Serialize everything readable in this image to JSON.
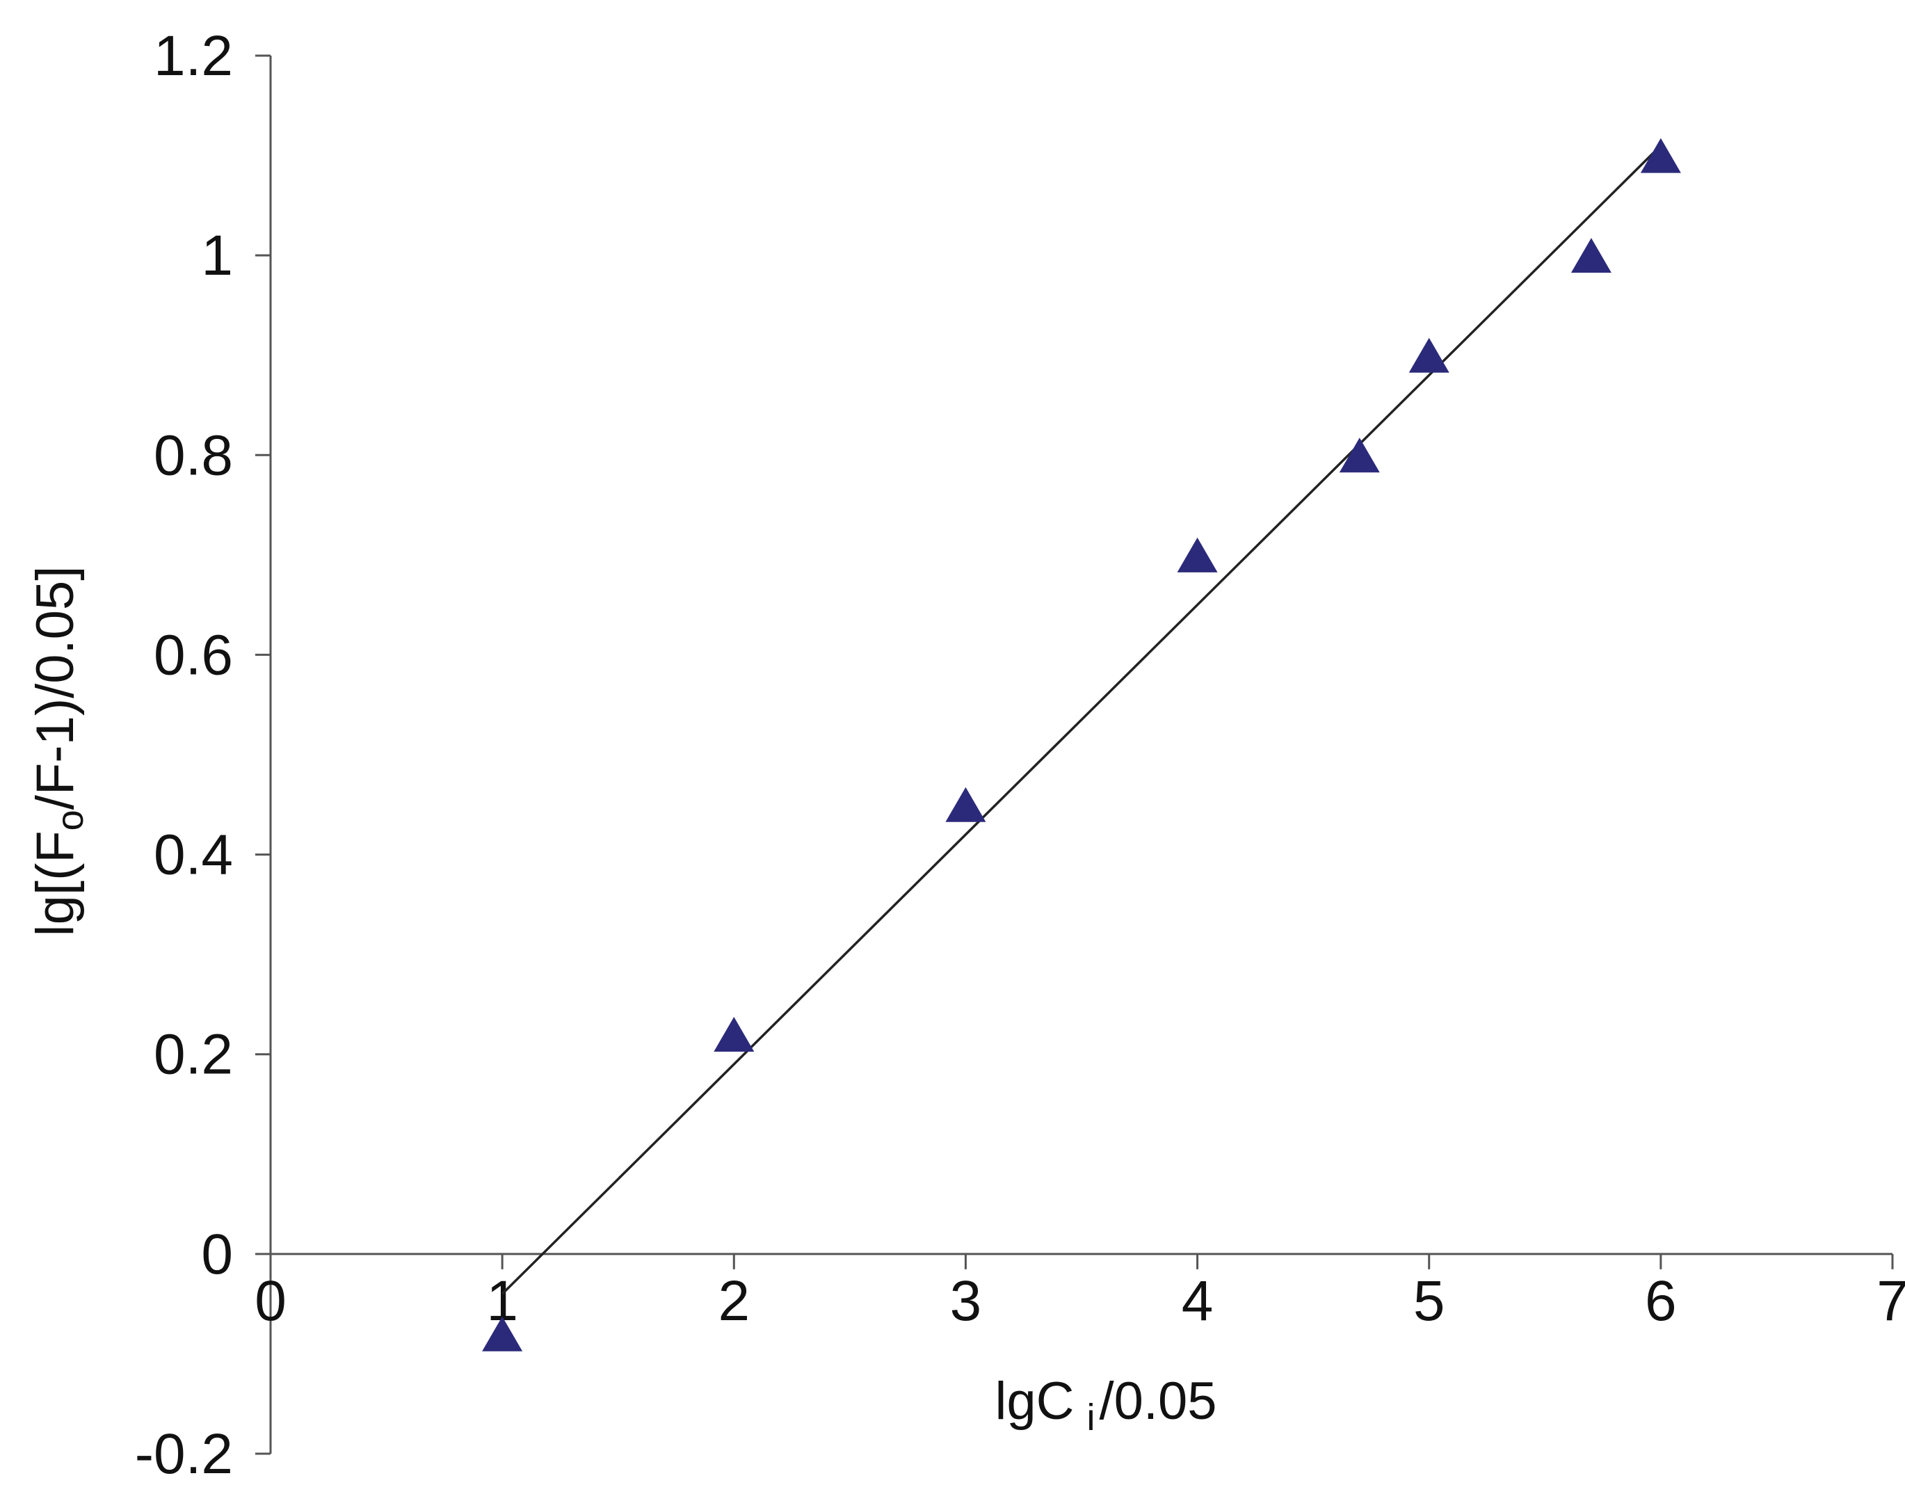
{
  "chart_data": {
    "type": "scatter",
    "title": "",
    "xlabel": "lgC i /0.05",
    "xlabel_parts": {
      "main": "lgC",
      "sub": "i",
      "rest": "/0.05"
    },
    "ylabel": "lg[(Fo/F-1)/0.05]",
    "ylabel_parts": {
      "pre": "lg[(F",
      "sub": "o",
      "post": "/F-1)/0.05]"
    },
    "xlim": [
      0,
      7
    ],
    "ylim": [
      -0.2,
      1.2
    ],
    "x_ticks": [
      0,
      1,
      2,
      3,
      4,
      5,
      6,
      7
    ],
    "x_tick_labels": [
      "0",
      "1",
      "2",
      "3",
      "4",
      "5",
      "6",
      "7"
    ],
    "y_ticks": [
      -0.2,
      0,
      0.2,
      0.4,
      0.6,
      0.8,
      1.0,
      1.2
    ],
    "y_tick_labels": [
      "-0.2",
      "0",
      "0.2",
      "0.4",
      "0.6",
      "0.8",
      "1",
      "1.2"
    ],
    "grid": false,
    "legend": "none",
    "marker": "triangle",
    "marker_color": "#2b2a7a",
    "line_color": "#222222",
    "series": [
      {
        "x": [
          1,
          2,
          3,
          4,
          4.7,
          5,
          5.7,
          6
        ],
        "y": [
          -0.08,
          0.22,
          0.45,
          0.7,
          0.8,
          0.9,
          1.0,
          1.1
        ]
      }
    ],
    "trendline": {
      "x": [
        1,
        6
      ],
      "y": [
        -0.04,
        1.11
      ]
    }
  }
}
